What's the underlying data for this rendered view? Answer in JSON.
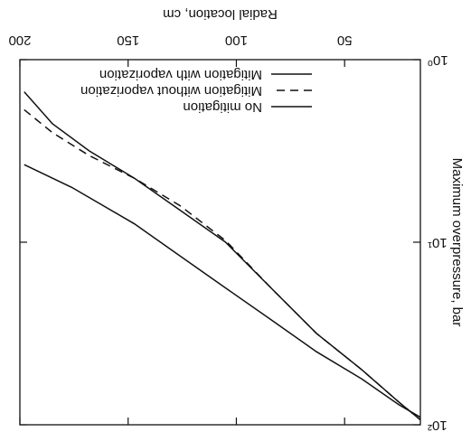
{
  "chart_data": {
    "type": "line",
    "x_label": "Radial location, cm",
    "y_label": "Maximum overpressure, bar",
    "xlim": [
      15,
      200
    ],
    "xticks": [
      50,
      100,
      150,
      200
    ],
    "ylim": [
      1,
      100
    ],
    "log_y": true,
    "yticks": [
      {
        "value": 1,
        "label": "10⁰"
      },
      {
        "value": 10,
        "label": "10¹"
      },
      {
        "value": 100,
        "label": "10²"
      }
    ],
    "legend": "lower-left",
    "rotation": 180,
    "series": [
      {
        "name": "No mitigation",
        "color": "#111111",
        "line_style": "solid",
        "x": [
          198,
          176,
          147,
          126,
          105,
          84,
          63,
          42,
          25,
          15
        ],
        "values": [
          3.76,
          5.01,
          7.94,
          11.9,
          17.8,
          26.6,
          39.8,
          56.2,
          77.6,
          91
        ]
      },
      {
        "name": "Mitigation without vaporization",
        "color": "#111111",
        "line_style": "dashed",
        "x": [
          198,
          185,
          168,
          147,
          126,
          105,
          84,
          63,
          42,
          25,
          15
        ],
        "values": [
          1.88,
          2.51,
          3.35,
          4.47,
          6.31,
          9.8,
          17.8,
          31.6,
          50,
          75,
          94
        ]
      },
      {
        "name": "Mitigation with vaporization",
        "color": "#111111",
        "line_style": "solid",
        "x": [
          198,
          185,
          168,
          147,
          126,
          105,
          84,
          63,
          42,
          25,
          15
        ],
        "values": [
          1.5,
          2.24,
          3.16,
          4.47,
          6.68,
          10,
          17.8,
          31.6,
          50,
          75,
          94
        ]
      }
    ]
  }
}
